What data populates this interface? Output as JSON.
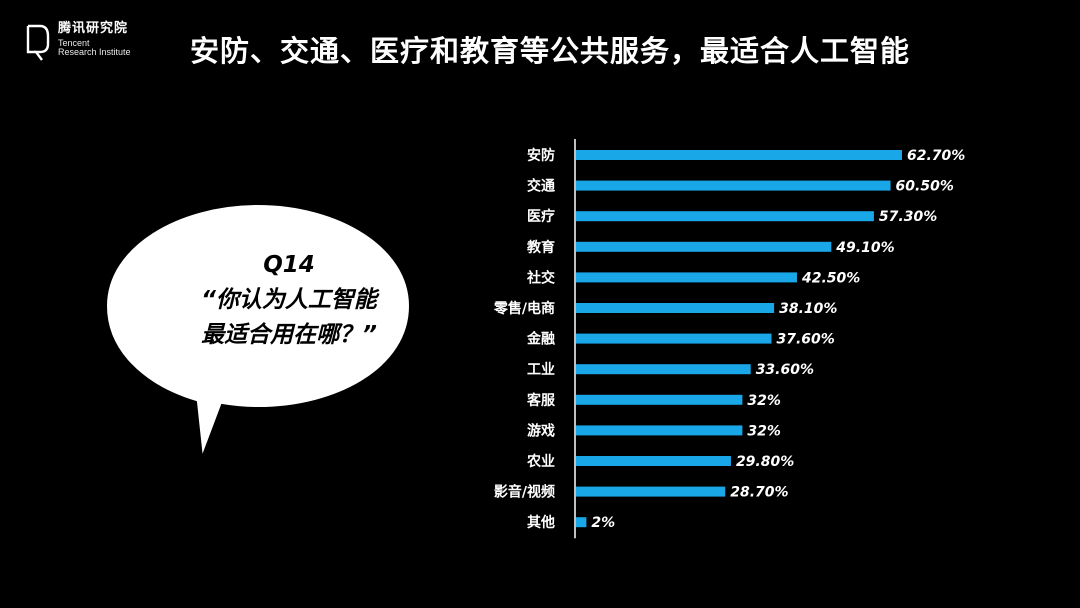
{
  "logo": {
    "name_cn": "腾讯研究院",
    "name_en_line1": "Tencent",
    "name_en_line2": "Research Institute"
  },
  "title": "安防、交通、医疗和教育等公共服务，最适合人工智能",
  "bubble": {
    "line1": "Q14",
    "line2": "“你认为人工智能",
    "line3": "最适合用在哪？”"
  },
  "colors": {
    "background": "#000000",
    "bar": "#1aa7e8",
    "text": "#ffffff",
    "bubble": "#ffffff"
  },
  "chart_data": {
    "type": "bar",
    "orientation": "horizontal",
    "categories": [
      "安防",
      "交通",
      "医疗",
      "教育",
      "社交",
      "零售/电商",
      "金融",
      "工业",
      "客服",
      "游戏",
      "农业",
      "影音/视频",
      "其他"
    ],
    "values": [
      62.7,
      60.5,
      57.3,
      49.1,
      42.5,
      38.1,
      37.6,
      33.6,
      32,
      32,
      29.8,
      28.7,
      2
    ],
    "data_labels": [
      "62.70%",
      "60.50%",
      "57.30%",
      "49.10%",
      "42.50%",
      "38.10%",
      "37.60%",
      "33.60%",
      "32%",
      "32%",
      "29.80%",
      "28.70%",
      "2%"
    ],
    "xlim": [
      0,
      100
    ],
    "grid": false,
    "legend": "none"
  }
}
